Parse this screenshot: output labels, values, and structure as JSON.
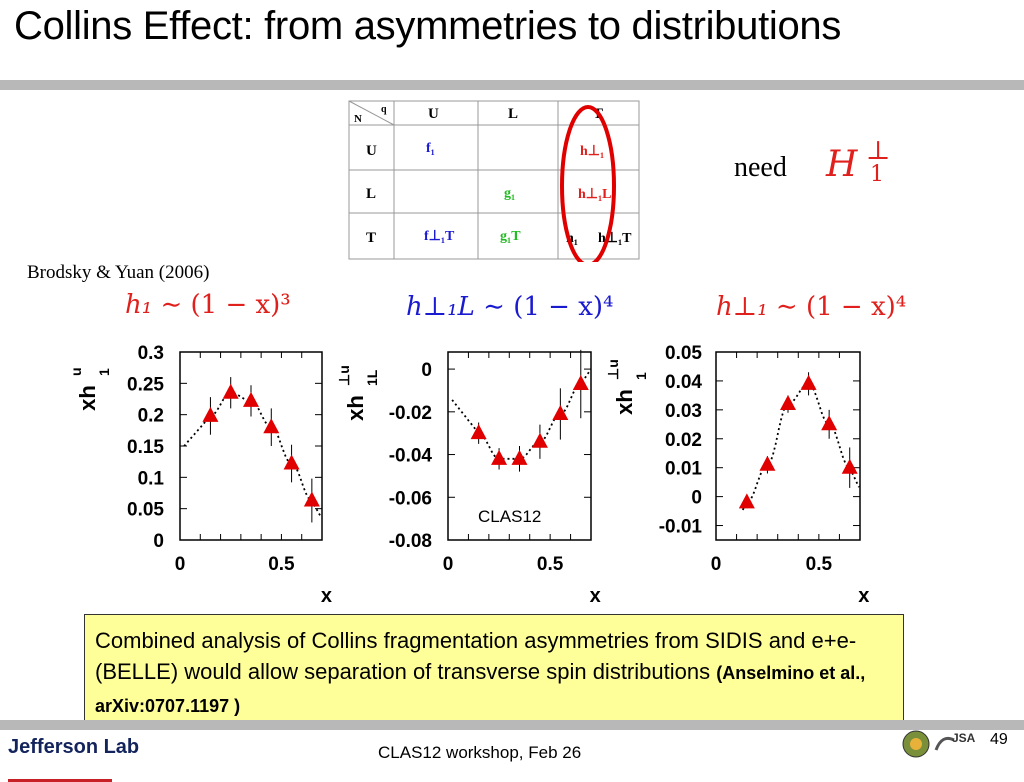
{
  "title": "Collins Effect: from asymmetries to distributions",
  "table": {
    "corner_n": "N",
    "corner_q": "q",
    "col_headers": [
      "U",
      "L",
      "T"
    ],
    "row_headers": [
      "U",
      "L",
      "T"
    ],
    "f1": "f₁",
    "g1": "g₁",
    "f1T": "f⊥₁T",
    "g1T": "g₁T",
    "h1perp": "h⊥₁",
    "h1Lperp": "h⊥₁L",
    "h1": "h₁",
    "h1Tperp": "h⊥₁T"
  },
  "need": {
    "label": "need",
    "symbol": "H",
    "sup": "⊥",
    "sub": "1"
  },
  "citation": "Brodsky & Yuan (2006)",
  "formulas": {
    "f1": {
      "lhs": "h₁",
      "rhs": "∼ (1 − x)³"
    },
    "f2": {
      "lhs": "h⊥₁L",
      "rhs": "∼ (1 − x)⁴"
    },
    "f3": {
      "lhs": "h⊥₁",
      "rhs": "∼ (1 − x)⁴"
    }
  },
  "chart_data": [
    {
      "type": "scatter",
      "ylabel": "xh",
      "ylabel_sup": "u",
      "ylabel_sub": "1",
      "xlabel": "x",
      "xlim": [
        0,
        0.7
      ],
      "ylim": [
        0,
        0.3
      ],
      "yticks": [
        "0.3",
        "0.25",
        "0.2",
        "0.15",
        "0.1",
        "0.05",
        "0"
      ],
      "ytick_values": [
        0.3,
        0.25,
        0.2,
        0.15,
        0.1,
        0.05,
        0
      ],
      "xticks": [
        "0",
        "0.5"
      ],
      "xtick_values": [
        0,
        0.5
      ],
      "x": [
        0.15,
        0.25,
        0.35,
        0.45,
        0.55,
        0.65
      ],
      "y": [
        0.198,
        0.235,
        0.222,
        0.18,
        0.122,
        0.063
      ],
      "err": [
        0.03,
        0.025,
        0.025,
        0.03,
        0.03,
        0.035
      ],
      "curve": "third-order"
    },
    {
      "type": "scatter",
      "ylabel": "xh",
      "ylabel_sup": "⊥u",
      "ylabel_sub": "1L",
      "xlabel": "x",
      "xlim": [
        0,
        0.7
      ],
      "ylim": [
        -0.08,
        0.008
      ],
      "yticks": [
        "0",
        "-0.02",
        "-0.04",
        "-0.06",
        "-0.08"
      ],
      "ytick_values": [
        0,
        -0.02,
        -0.04,
        -0.06,
        -0.08
      ],
      "xticks": [
        "0",
        "0.5"
      ],
      "xtick_values": [
        0,
        0.5
      ],
      "x": [
        0.15,
        0.25,
        0.35,
        0.45,
        0.55,
        0.65
      ],
      "y": [
        -0.03,
        -0.042,
        -0.042,
        -0.034,
        -0.021,
        -0.007
      ],
      "err": [
        0.005,
        0.005,
        0.006,
        0.008,
        0.012,
        0.016
      ],
      "annotation": "CLAS12",
      "curve": "parabola"
    },
    {
      "type": "scatter",
      "ylabel": "xh",
      "ylabel_sup": "⊥u",
      "ylabel_sub": "1",
      "xlabel": "x",
      "xlim": [
        0,
        0.7
      ],
      "ylim": [
        -0.015,
        0.05
      ],
      "yticks": [
        "0.05",
        "0.04",
        "0.03",
        "0.02",
        "0.01",
        "0",
        "-0.01"
      ],
      "ytick_values": [
        0.05,
        0.04,
        0.03,
        0.02,
        0.01,
        0,
        -0.01
      ],
      "xticks": [
        "0",
        "0.5"
      ],
      "xtick_values": [
        0,
        0.5
      ],
      "x": [
        0.15,
        0.25,
        0.35,
        0.45,
        0.55,
        0.65
      ],
      "y": [
        -0.002,
        0.011,
        0.032,
        0.039,
        0.025,
        0.01
      ],
      "err": [
        0.002,
        0.003,
        0.003,
        0.004,
        0.005,
        0.007
      ],
      "curve": "bump"
    }
  ],
  "note": {
    "text": "Combined analysis of Collins fragmentation asymmetries from SIDIS and e+e- (BELLE) would allow separation of transverse spin distributions ",
    "ref": "(Anselmino et al., arXiv:0707.1197 )"
  },
  "footer": "CLAS12 workshop,  Feb 26",
  "page_number": "49",
  "logo_text": "Jefferson Lab",
  "logo_jsa": "JSA",
  "colors": {
    "marker": "#e00000",
    "red": "#e0201c",
    "blue": "#1a1ad0",
    "green": "#22bb22",
    "note_bg": "#ffff9a",
    "bar": "#b8b8b8"
  }
}
